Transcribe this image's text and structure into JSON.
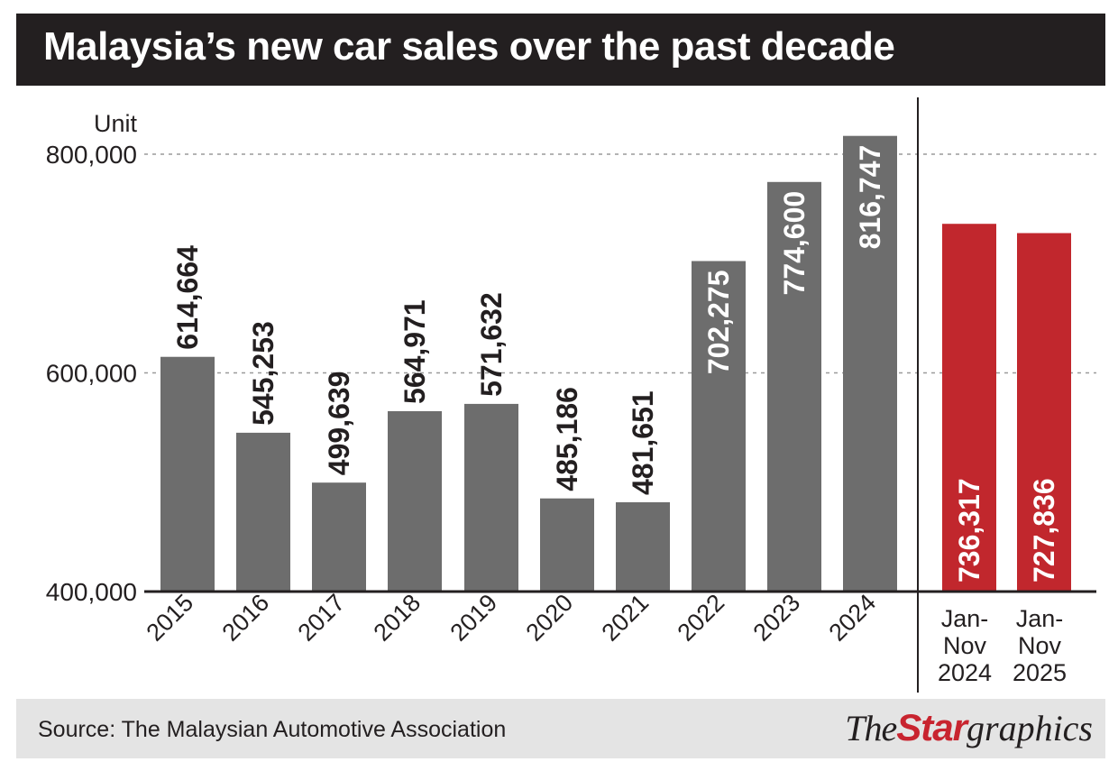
{
  "title": "Malaysia’s new car sales over the past decade",
  "source": "Source: The Malaysian Automotive Association",
  "logo": {
    "the": "The",
    "star": "Star",
    "graphics": "graphics"
  },
  "colors": {
    "annual_bar": "#6d6d6d",
    "ytd_bar": "#c1272d",
    "title_bg": "#231f20",
    "footer_bg": "#e4e4e4"
  },
  "chart_data": {
    "type": "bar",
    "ylabel": "Unit",
    "ylim": [
      400000,
      820000
    ],
    "yticks": [
      400000,
      600000,
      800000
    ],
    "ytick_labels": [
      "400,000",
      "600,000",
      "800,000"
    ],
    "grid": "dashed horizontal at 600,000 and 800,000",
    "categories": [
      "2015",
      "2016",
      "2017",
      "2018",
      "2019",
      "2020",
      "2021",
      "2022",
      "2023",
      "2024",
      "Jan-Nov 2024",
      "Jan-Nov 2025"
    ],
    "values": [
      614664,
      545253,
      499639,
      564971,
      571632,
      485186,
      481651,
      702275,
      774600,
      816747,
      736317,
      727836
    ],
    "value_labels": [
      "614,664",
      "545,253",
      "499,639",
      "564,971",
      "571,632",
      "485,186",
      "481,651",
      "702,275",
      "774,600",
      "816,747",
      "736,317",
      "727,836"
    ],
    "groups": [
      "annual",
      "annual",
      "annual",
      "annual",
      "annual",
      "annual",
      "annual",
      "annual",
      "annual",
      "annual",
      "ytd",
      "ytd"
    ]
  }
}
